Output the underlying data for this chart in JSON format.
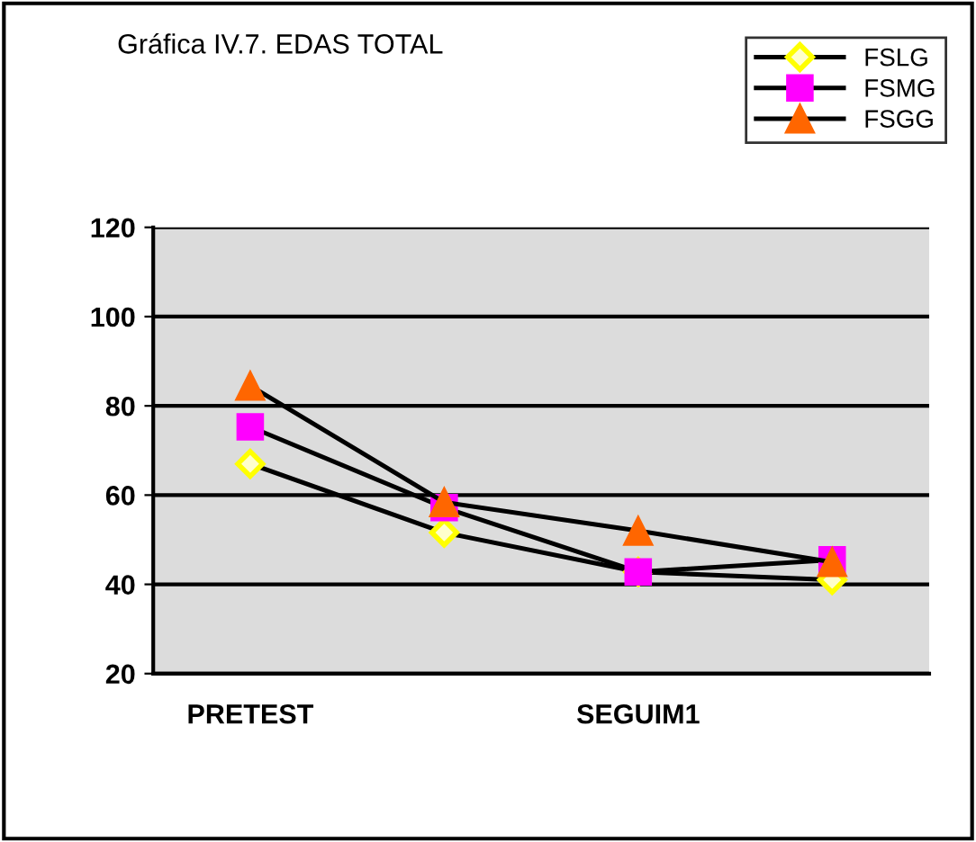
{
  "chart_data": {
    "type": "line",
    "title": "Gráfica IV.7. EDAS TOTAL",
    "categories": [
      "PRETEST",
      null,
      "SEGUIM1",
      null
    ],
    "series": [
      {
        "name": "FSLG",
        "color": "#ffff00",
        "marker": "diamond",
        "values": [
          67,
          51.6,
          42.8,
          41
        ]
      },
      {
        "name": "FSMG",
        "color": "#ff00ff",
        "marker": "square",
        "values": [
          75.3,
          57.2,
          42.8,
          45.5
        ]
      },
      {
        "name": "FSGG",
        "color": "#ff6600",
        "marker": "triangle",
        "values": [
          84.5,
          58.4,
          52,
          45
        ]
      }
    ],
    "ylim": [
      20,
      120
    ],
    "yticks": [
      20,
      40,
      60,
      80,
      100,
      120
    ],
    "grid": "y",
    "legend": "top right"
  }
}
